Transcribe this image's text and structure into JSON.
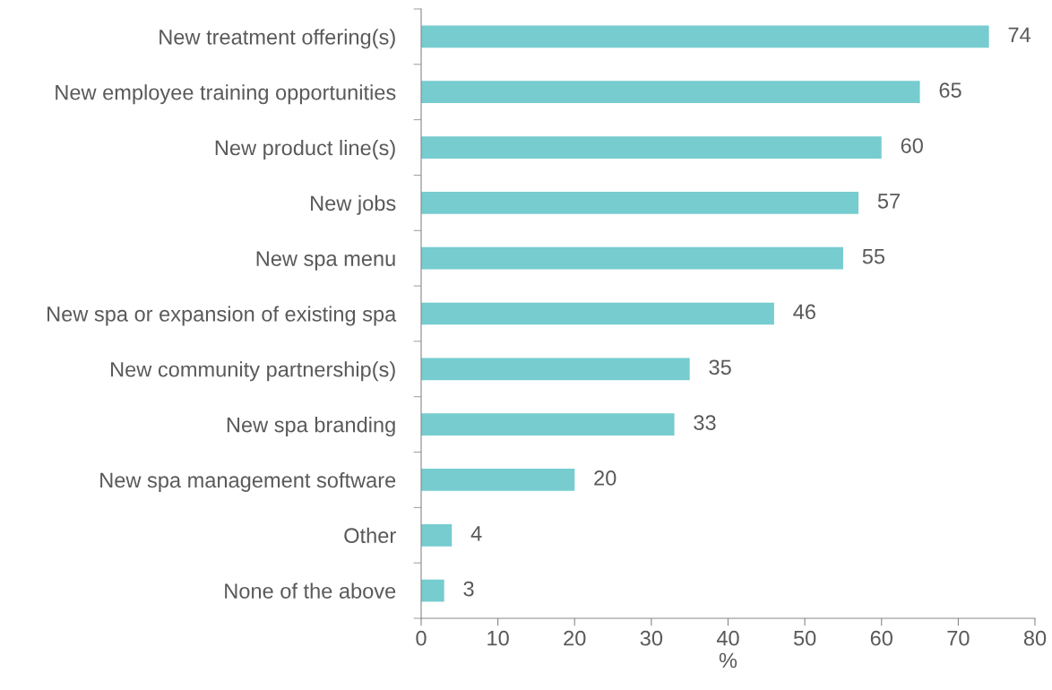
{
  "chart_data": {
    "type": "bar",
    "orientation": "horizontal",
    "xlabel": "%",
    "categories": [
      "New treatment offering(s)",
      "New employee training opportunities",
      "New product line(s)",
      "New jobs",
      "New spa menu",
      "New spa or expansion of existing spa",
      "New community partnership(s)",
      "New spa branding",
      "New spa management software",
      "Other",
      "None of the above"
    ],
    "values": [
      74,
      65,
      60,
      57,
      55,
      46,
      35,
      33,
      20,
      4,
      3
    ],
    "color": "#76cccf",
    "xlim": [
      0,
      80
    ],
    "xticks": [
      0,
      10,
      20,
      30,
      40,
      50,
      60,
      70,
      80
    ],
    "data_labels": true,
    "grid": false,
    "legend": false
  }
}
